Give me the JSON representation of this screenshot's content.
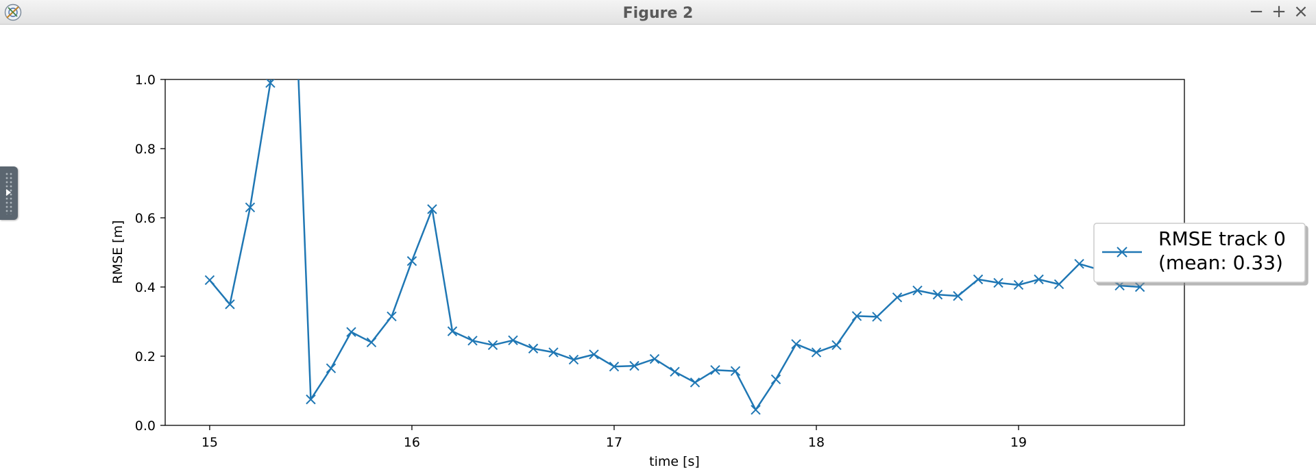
{
  "window": {
    "title": "Figure 2",
    "minimize_label": "−",
    "maximize_label": "+",
    "close_label": "×"
  },
  "chart_data": {
    "type": "line",
    "title": "",
    "xlabel": "time [s]",
    "ylabel": "RMSE [m]",
    "xlim": [
      14.78,
      19.82
    ],
    "ylim": [
      0.0,
      1.0
    ],
    "xticks": [
      15,
      16,
      17,
      18,
      19
    ],
    "xtick_labels": [
      "15",
      "16",
      "17",
      "18",
      "19"
    ],
    "yticks": [
      0.0,
      0.2,
      0.4,
      0.6,
      0.8,
      1.0
    ],
    "ytick_labels": [
      "0.0",
      "0.2",
      "0.4",
      "0.6",
      "0.8",
      "1.0"
    ],
    "grid": false,
    "legend": "center-right",
    "marker": "x",
    "color": "#1f77b4",
    "series": [
      {
        "name": "RMSE track 0\n(mean: 0.33)",
        "legend_lines": [
          "RMSE track 0",
          "(mean: 0.33)"
        ],
        "x": [
          15.0,
          15.1,
          15.2,
          15.3,
          15.4,
          15.5,
          15.6,
          15.7,
          15.8,
          15.9,
          16.0,
          16.1,
          16.2,
          16.3,
          16.4,
          16.5,
          16.6,
          16.7,
          16.8,
          16.9,
          17.0,
          17.1,
          17.2,
          17.3,
          17.4,
          17.5,
          17.6,
          17.7,
          17.8,
          17.9,
          18.0,
          18.1,
          18.2,
          18.3,
          18.4,
          18.5,
          18.6,
          18.7,
          18.8,
          18.9,
          19.0,
          19.1,
          19.2,
          19.3,
          19.4,
          19.5,
          19.6
        ],
        "y": [
          0.42,
          0.35,
          0.63,
          0.99,
          1.6,
          0.075,
          0.165,
          0.27,
          0.24,
          0.315,
          0.475,
          0.625,
          0.272,
          0.245,
          0.232,
          0.246,
          0.222,
          0.211,
          0.19,
          0.205,
          0.17,
          0.172,
          0.192,
          0.155,
          0.124,
          0.16,
          0.157,
          0.045,
          0.133,
          0.235,
          0.211,
          0.232,
          0.316,
          0.314,
          0.37,
          0.39,
          0.378,
          0.374,
          0.422,
          0.412,
          0.406,
          0.422,
          0.408,
          0.467,
          0.45,
          0.404,
          0.4
        ]
      }
    ]
  }
}
